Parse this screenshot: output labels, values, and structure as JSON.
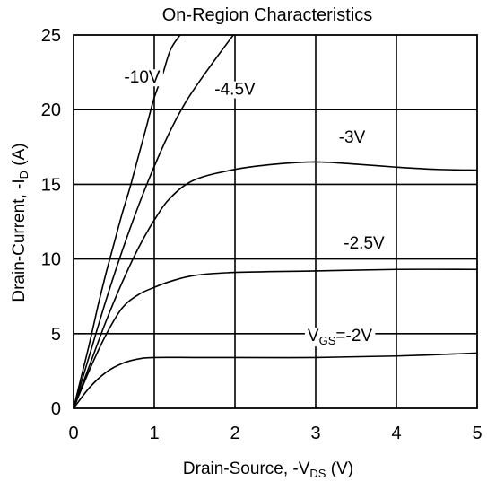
{
  "chart_data": {
    "type": "line",
    "title": "On-Region Characteristics",
    "xlabel": {
      "main": "Drain-Source, -V",
      "sub": "DS",
      "tail": " (V)"
    },
    "ylabel": {
      "main": "Drain-Current, -I",
      "sub": "D",
      "tail": " (A)"
    },
    "xlim": [
      0,
      5
    ],
    "ylim": [
      0,
      25
    ],
    "xticks": [
      "0",
      "1",
      "2",
      "3",
      "4",
      "5"
    ],
    "yticks": [
      "0",
      "5",
      "10",
      "15",
      "20",
      "25"
    ],
    "grid": true,
    "series": [
      {
        "name": "-10V",
        "points": [
          [
            0,
            0
          ],
          [
            0.1,
            2.2
          ],
          [
            0.2,
            4.4
          ],
          [
            0.3,
            6.8
          ],
          [
            0.4,
            9.0
          ],
          [
            0.5,
            11.0
          ],
          [
            0.6,
            13.0
          ],
          [
            0.7,
            14.8
          ],
          [
            0.8,
            16.8
          ],
          [
            0.9,
            18.8
          ],
          [
            1.0,
            20.8
          ],
          [
            1.1,
            22.3
          ],
          [
            1.2,
            24.0
          ],
          [
            1.32,
            25
          ]
        ]
      },
      {
        "name": "-4.5V",
        "points": [
          [
            0,
            0
          ],
          [
            0.2,
            3.6
          ],
          [
            0.4,
            7.2
          ],
          [
            0.6,
            10.5
          ],
          [
            0.8,
            13.5
          ],
          [
            1.0,
            16.2
          ],
          [
            1.2,
            18.6
          ],
          [
            1.4,
            20.6
          ],
          [
            1.6,
            22.2
          ],
          [
            1.8,
            23.7
          ],
          [
            1.98,
            25
          ]
        ]
      },
      {
        "name": "-3V",
        "points": [
          [
            0,
            0
          ],
          [
            0.2,
            2.9
          ],
          [
            0.4,
            5.8
          ],
          [
            0.6,
            8.4
          ],
          [
            0.8,
            10.7
          ],
          [
            1.0,
            12.6
          ],
          [
            1.2,
            14.1
          ],
          [
            1.5,
            15.3
          ],
          [
            2.0,
            16.0
          ],
          [
            2.5,
            16.35
          ],
          [
            3.0,
            16.5
          ],
          [
            3.5,
            16.35
          ],
          [
            4.0,
            16.15
          ],
          [
            4.5,
            16.0
          ],
          [
            5.0,
            15.95
          ]
        ]
      },
      {
        "name": "-2.5V",
        "points": [
          [
            0,
            0
          ],
          [
            0.2,
            2.6
          ],
          [
            0.4,
            4.9
          ],
          [
            0.6,
            6.7
          ],
          [
            0.8,
            7.6
          ],
          [
            1.0,
            8.1
          ],
          [
            1.2,
            8.5
          ],
          [
            1.5,
            8.9
          ],
          [
            2.0,
            9.1
          ],
          [
            3.0,
            9.2
          ],
          [
            4.0,
            9.3
          ],
          [
            5.0,
            9.3
          ]
        ]
      },
      {
        "name": "VGS=-2V",
        "points": [
          [
            0,
            0
          ],
          [
            0.2,
            1.4
          ],
          [
            0.4,
            2.4
          ],
          [
            0.6,
            3.0
          ],
          [
            0.8,
            3.3
          ],
          [
            1.0,
            3.4
          ],
          [
            1.5,
            3.4
          ],
          [
            2.0,
            3.4
          ],
          [
            3.0,
            3.4
          ],
          [
            4.0,
            3.5
          ],
          [
            5.0,
            3.7
          ]
        ]
      }
    ],
    "curve_labels": [
      {
        "text": "-10V",
        "x": 0.85,
        "y": 21.8
      },
      {
        "text": "-4.5V",
        "x": 2.0,
        "y": 21.0
      },
      {
        "text": "-3V",
        "x": 3.45,
        "y": 17.8
      },
      {
        "text": "-2.5V",
        "x": 3.6,
        "y": 10.7
      },
      {
        "text": "V",
        "sub": "GS",
        "tail": "=-2V",
        "x": 3.3,
        "y": 4.5
      }
    ],
    "colors": {
      "line": "#000000",
      "grid": "#000000",
      "background": "#ffffff"
    }
  }
}
